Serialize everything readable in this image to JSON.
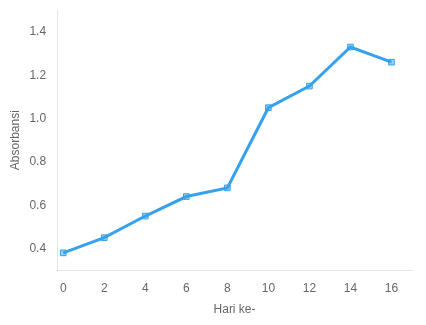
{
  "chart_data": {
    "type": "line",
    "xlabel": "Hari ke-",
    "ylabel": "Absorbansi",
    "x": [
      0,
      2,
      4,
      6,
      8,
      10,
      12,
      14,
      16
    ],
    "values": [
      0.38,
      0.45,
      0.55,
      0.64,
      0.68,
      1.05,
      1.15,
      1.33,
      1.26
    ],
    "xlim": [
      -0.3,
      17
    ],
    "ylim": [
      0.3,
      1.5
    ],
    "xticks": [
      0,
      2,
      4,
      6,
      8,
      10,
      12,
      14,
      16
    ],
    "yticks": [
      0.4,
      0.6,
      0.8,
      {
        "value": 1.0,
        "label": "1.0"
      },
      1.2,
      1.4
    ],
    "marker": "square",
    "grid": false
  }
}
